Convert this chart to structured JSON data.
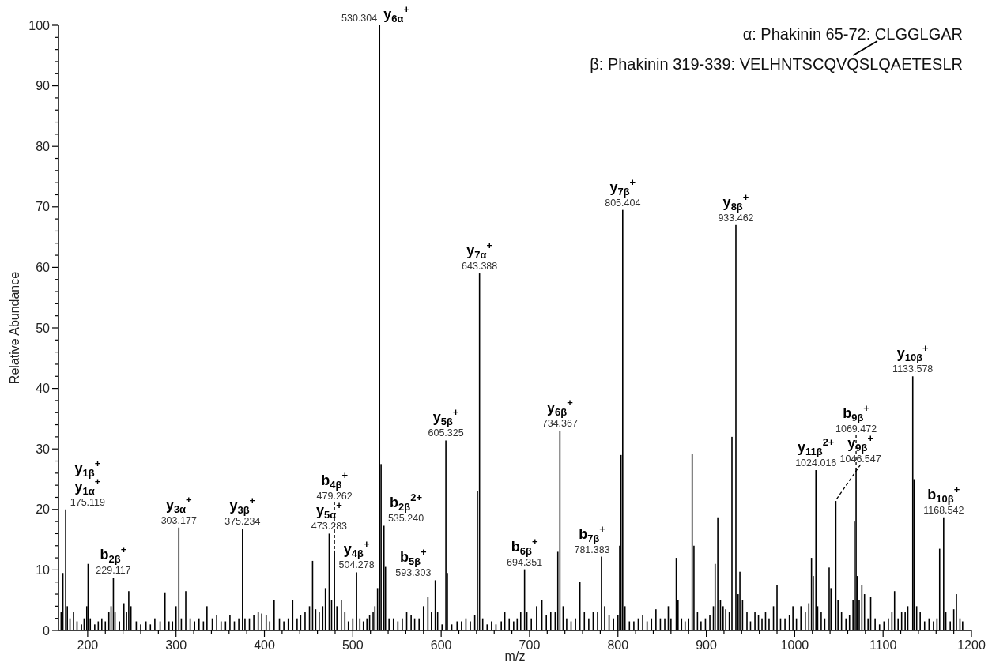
{
  "chart_data": {
    "type": "bar",
    "xlabel": "m/z",
    "ylabel": "Relative Abundance",
    "color": "#000000",
    "xlim": [
      167,
      1200
    ],
    "ylim": [
      0,
      100
    ],
    "xticks": [
      200,
      {
        "value": 220,
        "label": null
      },
      {
        "value": 240,
        "label": null
      },
      {
        "value": 260,
        "label": null
      },
      {
        "value": 280,
        "label": null
      },
      300,
      {
        "value": 320,
        "label": null
      },
      {
        "value": 340,
        "label": null
      },
      {
        "value": 360,
        "label": null
      },
      {
        "value": 380,
        "label": null
      },
      400,
      {
        "value": 420,
        "label": null
      },
      {
        "value": 440,
        "label": null
      },
      {
        "value": 460,
        "label": null
      },
      {
        "value": 480,
        "label": null
      },
      500,
      {
        "value": 520,
        "label": null
      },
      {
        "value": 540,
        "label": null
      },
      {
        "value": 560,
        "label": null
      },
      {
        "value": 580,
        "label": null
      },
      600,
      {
        "value": 620,
        "label": null
      },
      {
        "value": 640,
        "label": null
      },
      {
        "value": 660,
        "label": null
      },
      {
        "value": 680,
        "label": null
      },
      700,
      {
        "value": 720,
        "label": null
      },
      {
        "value": 740,
        "label": null
      },
      {
        "value": 760,
        "label": null
      },
      {
        "value": 780,
        "label": null
      },
      800,
      {
        "value": 820,
        "label": null
      },
      {
        "value": 840,
        "label": null
      },
      {
        "value": 860,
        "label": null
      },
      {
        "value": 880,
        "label": null
      },
      900,
      {
        "value": 920,
        "label": null
      },
      {
        "value": 940,
        "label": null
      },
      {
        "value": 960,
        "label": null
      },
      {
        "value": 980,
        "label": null
      },
      1000,
      {
        "value": 1020,
        "label": null
      },
      {
        "value": 1040,
        "label": null
      },
      {
        "value": 1060,
        "label": null
      },
      {
        "value": 1080,
        "label": null
      },
      1100,
      {
        "value": 1120,
        "label": null
      },
      {
        "value": 1140,
        "label": null
      },
      {
        "value": 1160,
        "label": null
      },
      {
        "value": 1180,
        "label": null
      },
      1200
    ],
    "yticks": [
      0,
      {
        "value": 2,
        "label": null
      },
      {
        "value": 4,
        "label": null
      },
      {
        "value": 6,
        "label": null
      },
      {
        "value": 8,
        "label": null
      },
      10,
      {
        "value": 12,
        "label": null
      },
      {
        "value": 14,
        "label": null
      },
      {
        "value": 16,
        "label": null
      },
      {
        "value": 18,
        "label": null
      },
      20,
      {
        "value": 22,
        "label": null
      },
      {
        "value": 24,
        "label": null
      },
      {
        "value": 26,
        "label": null
      },
      {
        "value": 28,
        "label": null
      },
      30,
      {
        "value": 32,
        "label": null
      },
      {
        "value": 34,
        "label": null
      },
      {
        "value": 36,
        "label": null
      },
      {
        "value": 38,
        "label": null
      },
      40,
      {
        "value": 42,
        "label": null
      },
      {
        "value": 44,
        "label": null
      },
      {
        "value": 46,
        "label": null
      },
      {
        "value": 48,
        "label": null
      },
      50,
      {
        "value": 52,
        "label": null
      },
      {
        "value": 54,
        "label": null
      },
      {
        "value": 56,
        "label": null
      },
      {
        "value": 58,
        "label": null
      },
      60,
      {
        "value": 62,
        "label": null
      },
      {
        "value": 64,
        "label": null
      },
      {
        "value": 66,
        "label": null
      },
      {
        "value": 68,
        "label": null
      },
      70,
      {
        "value": 72,
        "label": null
      },
      {
        "value": 74,
        "label": null
      },
      {
        "value": 76,
        "label": null
      },
      {
        "value": 78,
        "label": null
      },
      80,
      {
        "value": 82,
        "label": null
      },
      {
        "value": 84,
        "label": null
      },
      {
        "value": 86,
        "label": null
      },
      {
        "value": 88,
        "label": null
      },
      90,
      {
        "value": 92,
        "label": null
      },
      {
        "value": 94,
        "label": null
      },
      {
        "value": 96,
        "label": null
      },
      {
        "value": 98,
        "label": null
      },
      100
    ],
    "x": [
      170,
      172,
      175.119,
      177,
      180,
      184,
      188,
      193,
      196,
      199,
      200.5,
      203,
      208,
      212,
      216,
      220,
      224,
      226.5,
      229.117,
      231,
      236,
      241,
      244,
      246.5,
      249,
      255,
      260,
      266,
      271,
      276,
      282,
      287.5,
      292,
      296,
      300,
      303.177,
      306,
      311,
      316,
      321,
      326,
      331,
      335,
      341,
      346,
      351,
      356,
      361,
      366,
      371,
      375.234,
      378,
      383,
      388,
      393,
      397,
      402,
      406,
      411,
      417,
      422,
      427,
      432,
      437,
      441,
      446,
      451,
      454.5,
      458,
      462,
      466,
      469,
      473.283,
      476,
      479.262,
      482,
      487,
      491,
      495,
      500,
      504.278,
      508,
      512,
      516,
      519,
      523,
      525,
      528,
      530.304,
      532,
      535.24,
      537,
      541,
      546,
      551,
      556,
      561,
      566,
      570,
      575,
      580,
      585,
      589,
      593.303,
      596,
      601,
      605.325,
      607,
      612,
      618,
      623,
      628,
      633,
      638,
      641,
      643.388,
      647,
      652,
      657,
      662,
      668,
      672,
      677,
      682,
      686,
      690,
      694.351,
      697,
      702,
      708,
      714,
      719,
      724,
      729,
      732,
      734.367,
      738,
      742,
      747,
      752,
      757,
      762,
      767,
      772,
      777,
      781.383,
      785,
      790,
      795,
      800,
      802,
      803.5,
      805.404,
      808,
      813,
      818,
      823,
      828,
      833,
      838,
      843,
      848,
      853,
      857,
      860,
      866,
      868,
      872,
      876,
      880,
      884,
      886,
      890,
      894,
      899,
      904,
      908,
      910,
      913,
      916,
      919,
      922,
      926,
      929,
      933.462,
      936,
      938,
      941,
      946,
      950,
      955,
      959,
      963,
      967,
      971,
      976,
      980,
      984,
      989,
      994,
      998,
      1002,
      1007,
      1012,
      1016,
      1019,
      1021,
      1024.016,
      1026,
      1030,
      1034,
      1039,
      1041,
      1046.547,
      1049,
      1053,
      1058,
      1062,
      1066,
      1067.5,
      1069.472,
      1071,
      1073,
      1076,
      1079,
      1083,
      1086,
      1091,
      1096,
      1101,
      1106,
      1110,
      1113,
      1117,
      1121,
      1125,
      1128,
      1133.578,
      1135,
      1138,
      1142,
      1147,
      1152,
      1157,
      1161,
      1164,
      1168.542,
      1171,
      1176,
      1180,
      1183,
      1187,
      1190
    ],
    "values": [
      3,
      9.5,
      20,
      4,
      2,
      3,
      1.5,
      1,
      2,
      4,
      11,
      2,
      1,
      1.5,
      2,
      1.5,
      3,
      4,
      8.7,
      3,
      1.5,
      4.5,
      3,
      6.5,
      4,
      1.5,
      1,
      1.5,
      1,
      2,
      1.5,
      6.3,
      1.5,
      1.5,
      4,
      17,
      2,
      6.5,
      2,
      1.5,
      2,
      1.5,
      4,
      2,
      2.5,
      1.5,
      1.5,
      2.5,
      1.5,
      2,
      16.8,
      2,
      2,
      2.5,
      3,
      2.8,
      2.5,
      1.5,
      5,
      2,
      1.5,
      2,
      5,
      2,
      2.5,
      3,
      4,
      11.5,
      3.5,
      3,
      4,
      7,
      16,
      5,
      13.2,
      4,
      5,
      3,
      1.5,
      2,
      9.6,
      2,
      1.5,
      2,
      2.5,
      3,
      4,
      7,
      100,
      27.5,
      17.3,
      10.5,
      2,
      2,
      1.5,
      2,
      3,
      2.5,
      2,
      2,
      4,
      5.5,
      3,
      8.3,
      3,
      1,
      31.4,
      9.5,
      1,
      1.5,
      1.5,
      2,
      1.5,
      2.5,
      23,
      59,
      2,
      1,
      1.5,
      1,
      1.5,
      3,
      2,
      1.5,
      2,
      3,
      10.1,
      3,
      2,
      4,
      5,
      2.5,
      3,
      3,
      13,
      33,
      4,
      2,
      1.5,
      2,
      8,
      3,
      2,
      3,
      3,
      12.2,
      4,
      2.5,
      2,
      2.5,
      14,
      29,
      69.5,
      4,
      1.5,
      1.5,
      2,
      2.5,
      1.5,
      2,
      3.5,
      2,
      2,
      4,
      2,
      12,
      5,
      2,
      1.5,
      2,
      29.2,
      14,
      3,
      1.5,
      2,
      2.5,
      4,
      11,
      18.7,
      5,
      4,
      3.5,
      3,
      32,
      67,
      6,
      9.7,
      5,
      3,
      1.5,
      3,
      2.5,
      2,
      3,
      2,
      4,
      7.5,
      2,
      2,
      2.5,
      4,
      2,
      4,
      3,
      4.5,
      12,
      9,
      26.5,
      4,
      3,
      2,
      10.4,
      7,
      21.4,
      5,
      3,
      2,
      2.5,
      5,
      18,
      26.9,
      9,
      5,
      7.5,
      6,
      2,
      5.5,
      2,
      1,
      1.5,
      2,
      3,
      6.5,
      2,
      3,
      3,
      4,
      42,
      25,
      4,
      3,
      1.5,
      2,
      1.5,
      2,
      13.5,
      18.7,
      3,
      1.5,
      3.5,
      6,
      2,
      1.5
    ],
    "annotations": [
      "α: Phakinin 65-72: CLGGLGAR",
      "β: Phakinin 319-339: VELHNTSCQVQSLQAETESLR",
      {
        "text": "y$_{1β}$$^{+}$",
        "x": 175.119,
        "y": 20
      },
      {
        "text": "y$_{1α}$$^{+}$",
        "x": 175.119,
        "y": 20
      },
      {
        "text": "175.119",
        "x": 175.119,
        "y": 20
      },
      {
        "text": "b$_{2β}$$^{+}$",
        "x": 229.117,
        "y": 8.7
      },
      {
        "text": "229.117",
        "x": 229.117,
        "y": 8.7
      },
      {
        "text": "y$_{3α}$$^{+}$",
        "x": 303.177,
        "y": 17
      },
      {
        "text": "303.177",
        "x": 303.177,
        "y": 17
      },
      {
        "text": "y$_{3β}$$^{+}$",
        "x": 375.234,
        "y": 16.8
      },
      {
        "text": "375.234",
        "x": 375.234,
        "y": 16.8
      },
      {
        "text": "y$_{5α}$$^{+}$",
        "x": 473.283,
        "y": 16
      },
      {
        "text": "473.283",
        "x": 473.283,
        "y": 16
      },
      {
        "text": "b$_{4β}$$^{+}$",
        "x": 479.262,
        "y": 13.2
      },
      {
        "text": "479.262",
        "x": 479.262,
        "y": 13.2
      },
      {
        "text": "y$_{4β}$$^{+}$",
        "x": 504.278,
        "y": 9.6
      },
      {
        "text": "504.278",
        "x": 504.278,
        "y": 9.6
      },
      {
        "text": "y$_{6α}$$^{+}$",
        "x": 530.304,
        "y": 100
      },
      {
        "text": "530.304",
        "x": 530.304,
        "y": 100
      },
      {
        "text": "b$_{2β}$$^{2+}$",
        "x": 535.24,
        "y": 17.3
      },
      {
        "text": "535.240",
        "x": 535.24,
        "y": 17.3
      },
      {
        "text": "b$_{5β}$$^{+}$",
        "x": 593.303,
        "y": 8.3
      },
      {
        "text": "593.303",
        "x": 593.303,
        "y": 8.3
      },
      {
        "text": "y$_{5β}$$^{+}$",
        "x": 605.325,
        "y": 31.4
      },
      {
        "text": "605.325",
        "x": 605.325,
        "y": 31.4
      },
      {
        "text": "y$_{7α}$$^{+}$",
        "x": 643.388,
        "y": 59
      },
      {
        "text": "643.388",
        "x": 643.388,
        "y": 59
      },
      {
        "text": "b$_{6β}$$^{+}$",
        "x": 694.351,
        "y": 10.1
      },
      {
        "text": "694.351",
        "x": 694.351,
        "y": 10.1
      },
      {
        "text": "y$_{6β}$$^{+}$",
        "x": 734.367,
        "y": 33
      },
      {
        "text": "734.367",
        "x": 734.367,
        "y": 33
      },
      {
        "text": "b$_{7β}$$^{+}$",
        "x": 781.383,
        "y": 12.2
      },
      {
        "text": "781.383",
        "x": 781.383,
        "y": 12.2
      },
      {
        "text": "y$_{7β}$$^{+}$",
        "x": 805.404,
        "y": 69.5
      },
      {
        "text": "805.404",
        "x": 805.404,
        "y": 69.5
      },
      {
        "text": "y$_{8β}$$^{+}$",
        "x": 933.462,
        "y": 67
      },
      {
        "text": "933.462",
        "x": 933.462,
        "y": 67
      },
      {
        "text": "y$_{11β}$$^{2+}$",
        "x": 1024.016,
        "y": 26.5
      },
      {
        "text": "1024.016",
        "x": 1024.016,
        "y": 26.5
      },
      {
        "text": "y$_{9β}$$^{+}$",
        "x": 1046.547,
        "y": 21.4
      },
      {
        "text": "1046.547",
        "x": 1046.547,
        "y": 21.4
      },
      {
        "text": "b$_{9β}$$^{+}$",
        "x": 1069.472,
        "y": 26.9
      },
      {
        "text": "1069.472",
        "x": 1069.472,
        "y": 26.9
      },
      {
        "text": "y$_{10β}$$^{+}$",
        "x": 1133.578,
        "y": 42
      },
      {
        "text": "1133.578",
        "x": 1133.578,
        "y": 42
      },
      {
        "text": "b$_{10β}$$^{+}$",
        "x": 1168.542,
        "y": 18.7
      },
      {
        "text": "1168.542",
        "x": 1168.542,
        "y": 18.7
      }
    ]
  }
}
